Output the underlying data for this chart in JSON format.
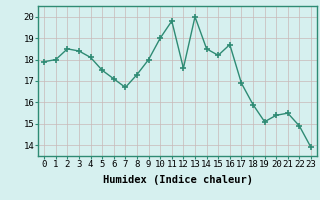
{
  "x": [
    0,
    1,
    2,
    3,
    4,
    5,
    6,
    7,
    8,
    9,
    10,
    11,
    12,
    13,
    14,
    15,
    16,
    17,
    18,
    19,
    20,
    21,
    22,
    23
  ],
  "y": [
    17.9,
    18.0,
    18.5,
    18.4,
    18.1,
    17.5,
    17.1,
    16.7,
    17.3,
    18.0,
    19.0,
    19.8,
    17.6,
    20.0,
    18.5,
    18.2,
    18.7,
    16.9,
    15.9,
    15.1,
    15.4,
    15.5,
    14.9,
    13.9
  ],
  "line_color": "#2e8b74",
  "marker": "+",
  "marker_size": 4,
  "bg_color": "#d6f0ef",
  "grid_color": "#c8b8b8",
  "xlabel": "Humidex (Indice chaleur)",
  "xlim": [
    -0.5,
    23.5
  ],
  "ylim": [
    13.5,
    20.5
  ],
  "yticks": [
    14,
    15,
    16,
    17,
    18,
    19,
    20
  ],
  "xticks": [
    0,
    1,
    2,
    3,
    4,
    5,
    6,
    7,
    8,
    9,
    10,
    11,
    12,
    13,
    14,
    15,
    16,
    17,
    18,
    19,
    20,
    21,
    22,
    23
  ],
  "tick_fontsize": 6.5,
  "xlabel_fontsize": 7.5,
  "line_width": 1.0,
  "spine_color": "#2e8b74"
}
